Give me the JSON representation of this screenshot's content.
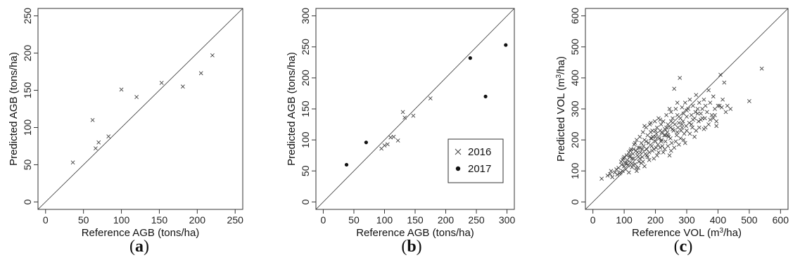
{
  "chart_data": [
    {
      "type": "scatter",
      "panel_label": "a",
      "xlabel": "Reference AGB (tons/ha)",
      "ylabel": "Predicted AGB (tons/ha)",
      "xlim": [
        0,
        250
      ],
      "ylim": [
        0,
        250
      ],
      "xticks": [
        0,
        50,
        100,
        150,
        200,
        250
      ],
      "yticks": [
        0,
        50,
        100,
        150,
        200,
        250
      ],
      "identity_line": true,
      "series": [
        {
          "marker": "x",
          "points": [
            [
              36,
              53
            ],
            [
              62,
              110
            ],
            [
              66,
              72
            ],
            [
              70,
              80
            ],
            [
              83,
              88
            ],
            [
              100,
              151
            ],
            [
              120,
              141
            ],
            [
              153,
              160
            ],
            [
              181,
              155
            ],
            [
              205,
              173
            ],
            [
              220,
              197
            ]
          ]
        }
      ]
    },
    {
      "type": "scatter",
      "panel_label": "b",
      "xlabel": "Reference AGB (tons/ha)",
      "ylabel": "Predicted AGB (tons/ha)",
      "xlim": [
        0,
        300
      ],
      "ylim": [
        0,
        300
      ],
      "xticks": [
        0,
        50,
        100,
        150,
        200,
        250,
        300
      ],
      "yticks": [
        0,
        50,
        100,
        150,
        200,
        250,
        300
      ],
      "identity_line": true,
      "legend": {
        "placement": "center-right",
        "entries": [
          "2016",
          "2017"
        ]
      },
      "series": [
        {
          "name": "2016",
          "marker": "x",
          "points": [
            [
              95,
              86
            ],
            [
              100,
              91
            ],
            [
              105,
              93
            ],
            [
              110,
              104
            ],
            [
              115,
              105
            ],
            [
              122,
              99
            ],
            [
              130,
              145
            ],
            [
              133,
              136
            ],
            [
              147,
              139
            ],
            [
              175,
              167
            ]
          ]
        },
        {
          "name": "2017",
          "marker": "dot",
          "points": [
            [
              38,
              60
            ],
            [
              70,
              96
            ],
            [
              240,
              232
            ],
            [
              265,
              170
            ],
            [
              298,
              253
            ]
          ]
        }
      ]
    },
    {
      "type": "scatter",
      "panel_label": "c",
      "xlabel_parts": [
        "Reference VOL (m",
        "3",
        "/ha)"
      ],
      "ylabel_parts": [
        "Predicted VOL (m",
        "3",
        "/ha)"
      ],
      "xlim": [
        0,
        600
      ],
      "ylim": [
        0,
        600
      ],
      "xticks": [
        0,
        100,
        200,
        300,
        400,
        500,
        600
      ],
      "yticks": [
        0,
        100,
        200,
        300,
        400,
        500,
        600
      ],
      "identity_line": true,
      "series": [
        {
          "marker": "x",
          "points": [
            [
              28,
              75
            ],
            [
              47,
              85
            ],
            [
              55,
              90
            ],
            [
              58,
              100
            ],
            [
              62,
              80
            ],
            [
              70,
              95
            ],
            [
              78,
              88
            ],
            [
              82,
              110
            ],
            [
              85,
              92
            ],
            [
              90,
              130
            ],
            [
              92,
              120
            ],
            [
              95,
              100
            ],
            [
              98,
              140
            ],
            [
              100,
              115
            ],
            [
              103,
              125
            ],
            [
              105,
              105
            ],
            [
              108,
              150
            ],
            [
              110,
              135
            ],
            [
              112,
              118
            ],
            [
              115,
              160
            ],
            [
              118,
              145
            ],
            [
              120,
              128
            ],
            [
              122,
              170
            ],
            [
              125,
              112
            ],
            [
              128,
              155
            ],
            [
              130,
              140
            ],
            [
              132,
              185
            ],
            [
              135,
              122
            ],
            [
              138,
              165
            ],
            [
              140,
              200
            ],
            [
              142,
              150
            ],
            [
              145,
              175
            ],
            [
              147,
              130
            ],
            [
              150,
              210
            ],
            [
              152,
              160
            ],
            [
              155,
              190
            ],
            [
              158,
              145
            ],
            [
              160,
              225
            ],
            [
              162,
              180
            ],
            [
              165,
              200
            ],
            [
              168,
              155
            ],
            [
              170,
              240
            ],
            [
              172,
              170
            ],
            [
              175,
              215
            ],
            [
              178,
              190
            ],
            [
              180,
              160
            ],
            [
              182,
              250
            ],
            [
              185,
              205
            ],
            [
              188,
              180
            ],
            [
              190,
              230
            ],
            [
              192,
              210
            ],
            [
              195,
              170
            ],
            [
              198,
              260
            ],
            [
              200,
              195
            ],
            [
              203,
              220
            ],
            [
              205,
              240
            ],
            [
              208,
              185
            ],
            [
              210,
              270
            ],
            [
              212,
              205
            ],
            [
              215,
              230
            ],
            [
              218,
              250
            ],
            [
              220,
              200
            ],
            [
              222,
              180
            ],
            [
              225,
              260
            ],
            [
              228,
              215
            ],
            [
              230,
              235
            ],
            [
              232,
              195
            ],
            [
              235,
              280
            ],
            [
              238,
              225
            ],
            [
              240,
              250
            ],
            [
              242,
              210
            ],
            [
              245,
              300
            ],
            [
              248,
              240
            ],
            [
              250,
              260
            ],
            [
              252,
              190
            ],
            [
              255,
              270
            ],
            [
              258,
              230
            ],
            [
              260,
              365
            ],
            [
              262,
              250
            ],
            [
              265,
              300
            ],
            [
              268,
              215
            ],
            [
              270,
              280
            ],
            [
              272,
              240
            ],
            [
              275,
              255
            ],
            [
              278,
              400
            ],
            [
              280,
              270
            ],
            [
              282,
              230
            ],
            [
              285,
              305
            ],
            [
              288,
              260
            ],
            [
              290,
              285
            ],
            [
              292,
              220
            ],
            [
              295,
              320
            ],
            [
              298,
              245
            ],
            [
              300,
              275
            ],
            [
              305,
              300
            ],
            [
              308,
              255
            ],
            [
              310,
              330
            ],
            [
              315,
              280
            ],
            [
              318,
              240
            ],
            [
              320,
              310
            ],
            [
              325,
              270
            ],
            [
              328,
              290
            ],
            [
              330,
              345
            ],
            [
              335,
              300
            ],
            [
              338,
              260
            ],
            [
              340,
              320
            ],
            [
              345,
              285
            ],
            [
              350,
              300
            ],
            [
              355,
              330
            ],
            [
              358,
              270
            ],
            [
              360,
              310
            ],
            [
              365,
              290
            ],
            [
              370,
              360
            ],
            [
              375,
              320
            ],
            [
              380,
              280
            ],
            [
              385,
              340
            ],
            [
              390,
              300
            ],
            [
              395,
              260
            ],
            [
              400,
              310
            ],
            [
              408,
              410
            ],
            [
              412,
              305
            ],
            [
              420,
              385
            ],
            [
              425,
              290
            ],
            [
              430,
              310
            ],
            [
              440,
              300
            ],
            [
              500,
              325
            ],
            [
              540,
              430
            ],
            [
              100,
              145
            ],
            [
              115,
              95
            ],
            [
              130,
              170
            ],
            [
              145,
              110
            ],
            [
              160,
              130
            ],
            [
              175,
              145
            ],
            [
              190,
              165
            ],
            [
              205,
              150
            ],
            [
              215,
              175
            ],
            [
              225,
              160
            ],
            [
              240,
              180
            ],
            [
              250,
              165
            ],
            [
              265,
              195
            ],
            [
              280,
              205
            ],
            [
              295,
              190
            ],
            [
              310,
              220
            ],
            [
              325,
              210
            ],
            [
              340,
              240
            ],
            [
              355,
              235
            ],
            [
              370,
              250
            ],
            [
              385,
              270
            ],
            [
              395,
              245
            ],
            [
              140,
              100
            ],
            [
              155,
              125
            ],
            [
              165,
              115
            ],
            [
              180,
              135
            ],
            [
              195,
              140
            ],
            [
              210,
              160
            ],
            [
              230,
              170
            ],
            [
              245,
              150
            ],
            [
              260,
              175
            ],
            [
              275,
              185
            ],
            [
              290,
              200
            ],
            [
              120,
              165
            ],
            [
              135,
              190
            ],
            [
              150,
              175
            ],
            [
              165,
              245
            ],
            [
              185,
              255
            ],
            [
              200,
              230
            ],
            [
              215,
              265
            ],
            [
              235,
              240
            ],
            [
              250,
              290
            ],
            [
              270,
              320
            ],
            [
              285,
              250
            ],
            [
              300,
              295
            ],
            [
              320,
              265
            ],
            [
              335,
              285
            ],
            [
              350,
              270
            ],
            [
              75,
              105
            ],
            [
              88,
              95
            ],
            [
              95,
              135
            ],
            [
              108,
              125
            ],
            [
              125,
              140
            ],
            [
              138,
              110
            ],
            [
              150,
              140
            ],
            [
              170,
              195
            ],
            [
              185,
              225
            ],
            [
              200,
              210
            ],
            [
              220,
              225
            ],
            [
              240,
              215
            ],
            [
              255,
              235
            ],
            [
              270,
              225
            ],
            [
              285,
              240
            ],
            [
              300,
              230
            ],
            [
              315,
              250
            ],
            [
              330,
              230
            ],
            [
              345,
              265
            ],
            [
              360,
              240
            ],
            [
              375,
              265
            ],
            [
              390,
              280
            ],
            [
              405,
              310
            ],
            [
              415,
              330
            ],
            [
              118,
              150
            ],
            [
              128,
              120
            ],
            [
              142,
              160
            ],
            [
              158,
              170
            ],
            [
              172,
              150
            ],
            [
              188,
              205
            ],
            [
              202,
              175
            ],
            [
              218,
              195
            ],
            [
              232,
              215
            ],
            [
              248,
              205
            ]
          ]
        }
      ]
    }
  ]
}
